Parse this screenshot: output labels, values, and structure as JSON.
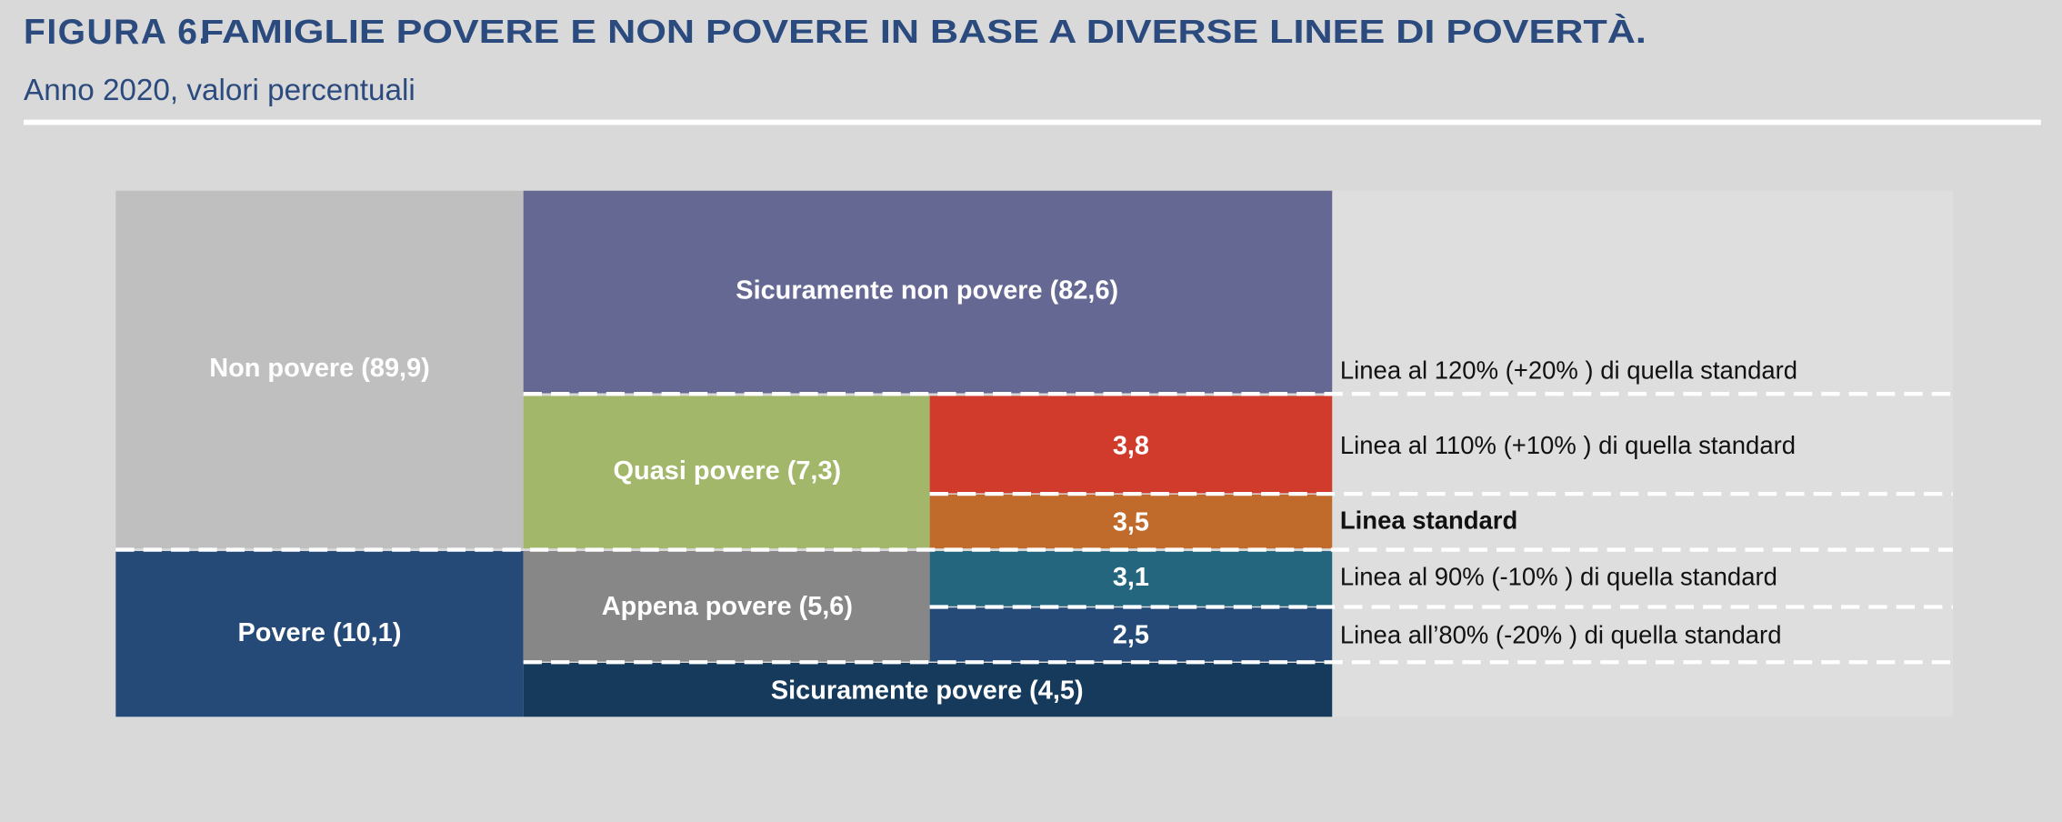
{
  "header": {
    "figure": "FIGURA 6.",
    "title": "FAMIGLIE POVERE E NON POVERE IN BASE A DIVERSE LINEE DI POVERTÀ.",
    "subtitle": "Anno 2020, valori percentuali"
  },
  "blocks": {
    "non_povere": "Non povere (89,9)",
    "povere": "Povere (10,1)",
    "sicuramente_non_povere": "Sicuramente non povere (82,6)",
    "quasi_povere": "Quasi povere (7,3)",
    "appena_povere": "Appena povere (5,6)",
    "sicuramente_povere": "Sicuramente povere (4,5)",
    "q1": "3,8",
    "q2": "3,5",
    "a1": "3,1",
    "a2": "2,5"
  },
  "lines": [
    "Linea al 120%  (+20% ) di quella standard",
    "Linea al 110%  (+10% ) di quella standard",
    "Linea standard",
    "Linea al 90%  (-10% ) di quella  standard",
    "Linea all’80%  (-20% ) di quella standard"
  ]
}
